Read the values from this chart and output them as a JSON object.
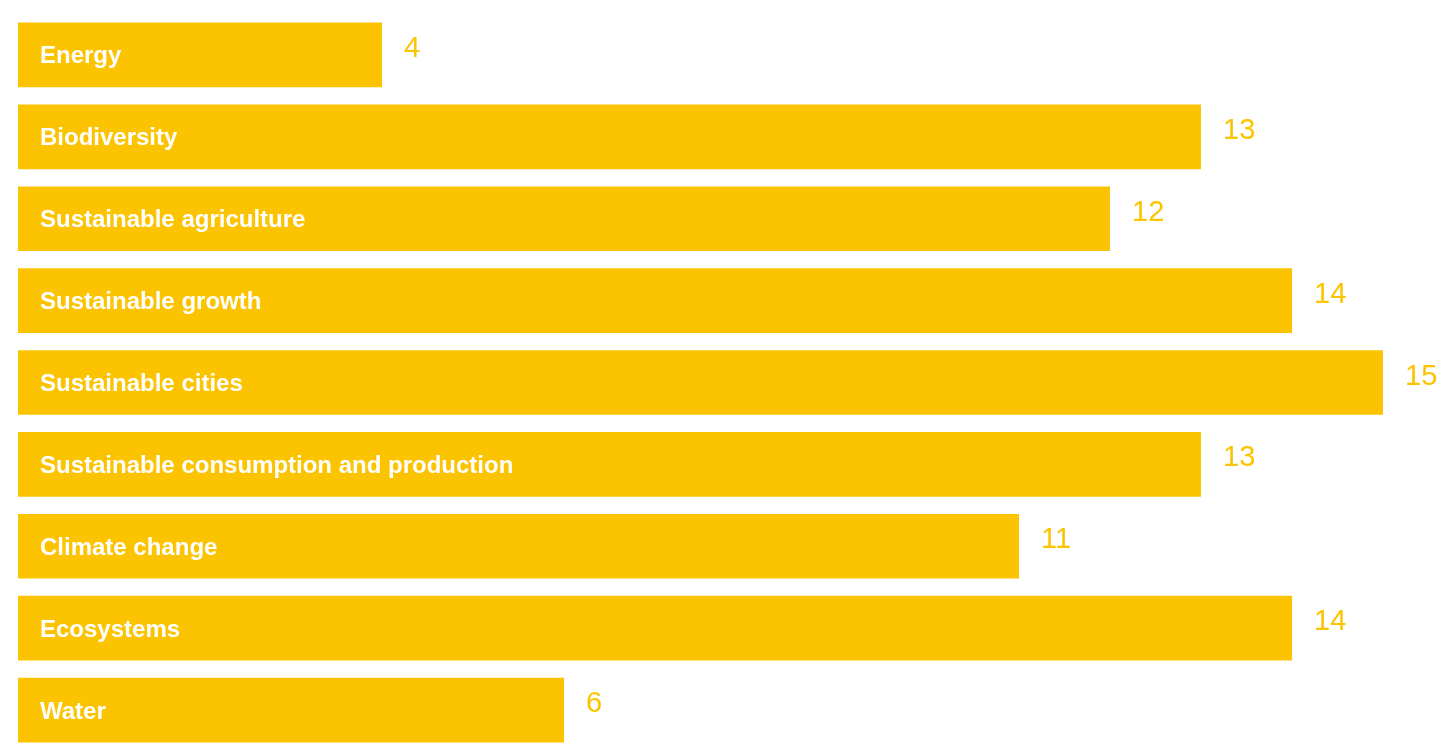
{
  "chart_data": {
    "type": "bar",
    "orientation": "horizontal",
    "categories": [
      "Energy",
      "Biodiversity",
      "Sustainable agriculture",
      "Sustainable growth",
      "Sustainable cities",
      "Sustainable consumption and production",
      "Climate change",
      "Ecosystems",
      "Water"
    ],
    "values": [
      4,
      13,
      12,
      14,
      15,
      13,
      11,
      14,
      6
    ],
    "color": "#fcc400",
    "data_labels": true
  }
}
